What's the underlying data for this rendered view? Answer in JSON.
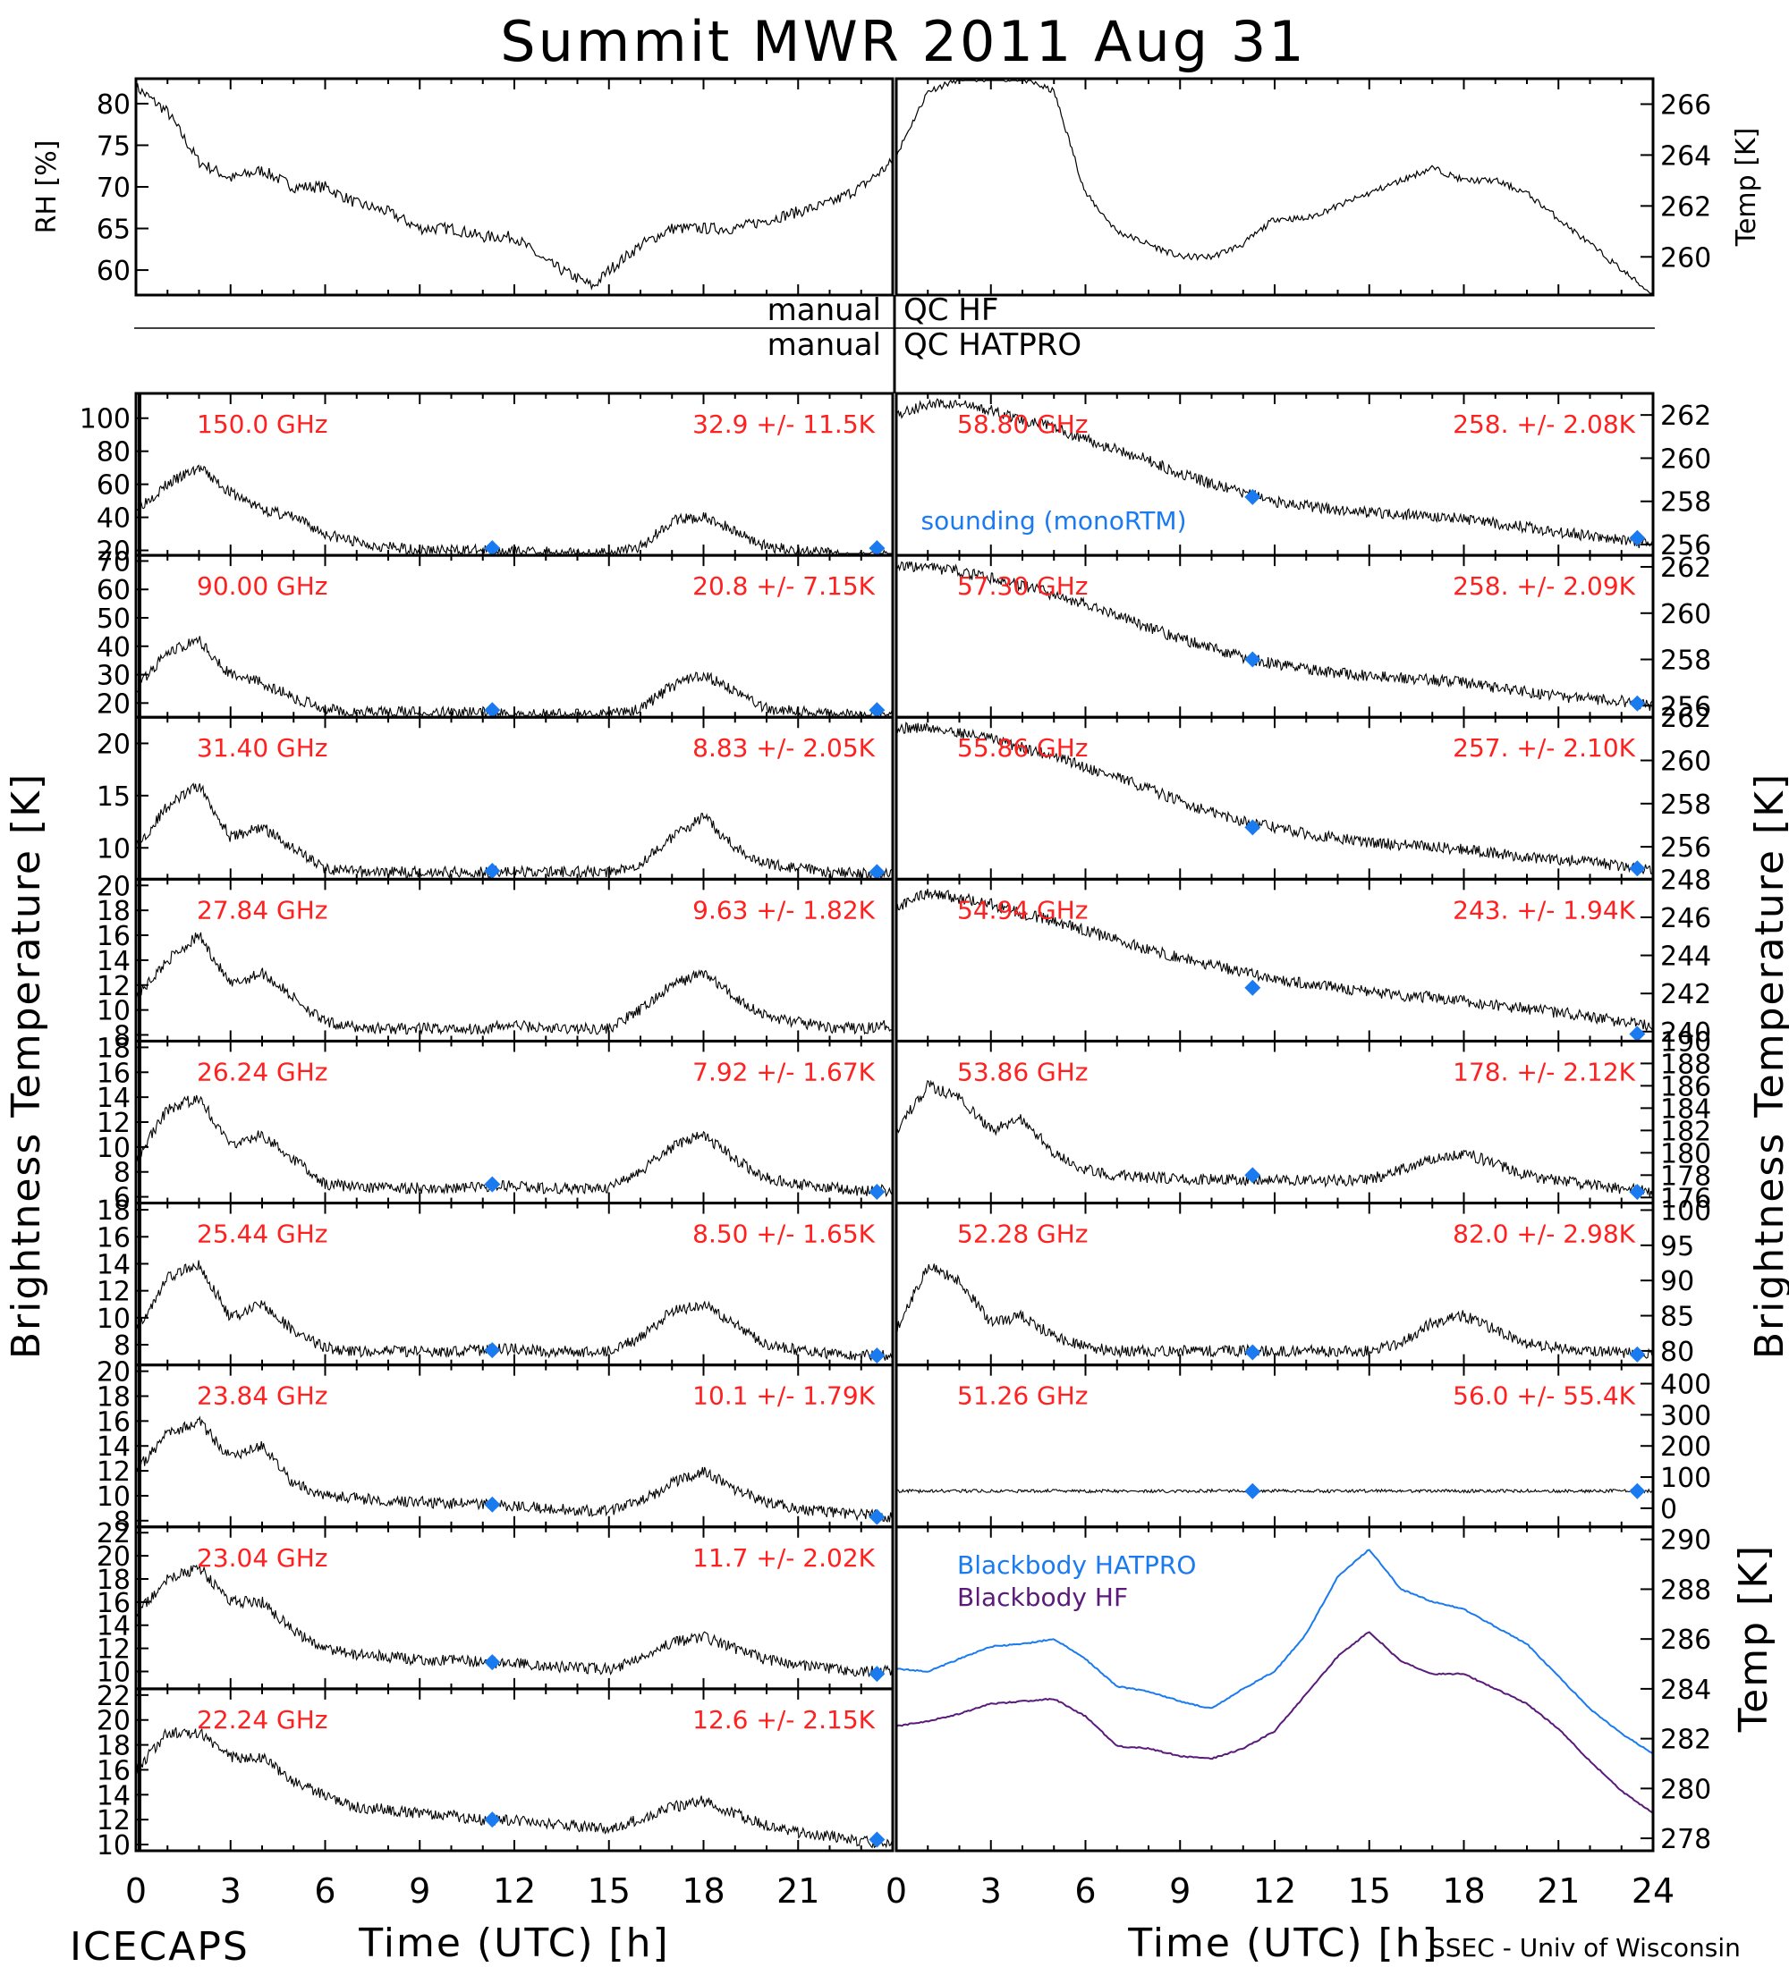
{
  "figure": {
    "title": "Summit MWR 2011 Aug 31",
    "footer_left": "ICECAPS",
    "footer_right": "SSEC - Univ of Wisconsin",
    "xlabel": "Time (UTC) [h]",
    "left_ylabel": "Brightness Temperature [K]",
    "right_ylabel": "Brightness Temperature [K]",
    "x_ticks": [
      "0",
      "3",
      "6",
      "9",
      "12",
      "15",
      "18",
      "21",
      "24"
    ],
    "x_ticks_left": [
      "0",
      "3",
      "6",
      "9",
      "12",
      "15",
      "18",
      "21"
    ],
    "qc": {
      "row1_left": "manual",
      "row1_right": "QC HF",
      "row2_left": "manual",
      "row2_right": "QC HATPRO"
    },
    "sounding_label": "sounding (monoRTM)",
    "colors": {
      "trace": "#000000",
      "label": "#ff2020",
      "sounding": "#1a7af0",
      "bb_hatpro": "#1a7af0",
      "bb_hf": "#5a1a7a"
    }
  },
  "chart_data": [
    {
      "id": "rh",
      "type": "line",
      "ylabel": "RH [%]",
      "xlim": [
        0,
        24
      ],
      "ylim": [
        57,
        83
      ],
      "yticks": [
        "60",
        "65",
        "70",
        "75",
        "80"
      ],
      "x": [
        0,
        1,
        2,
        3,
        4,
        5,
        6,
        7,
        8,
        9,
        10,
        11,
        12,
        13,
        14,
        14.5,
        15,
        16,
        17,
        18,
        19,
        20,
        21,
        22,
        23,
        24
      ],
      "y": [
        82,
        79,
        73,
        71,
        72,
        70,
        70,
        68,
        67,
        65,
        65,
        64,
        64,
        61,
        59,
        58,
        60,
        63,
        65,
        65,
        65,
        66,
        67,
        68,
        70,
        73
      ]
    },
    {
      "id": "temp",
      "type": "line",
      "ylabel": "Temp [K]",
      "xlim": [
        0,
        24
      ],
      "ylim": [
        258.5,
        267
      ],
      "yticks": [
        "260",
        "262",
        "264",
        "266"
      ],
      "x": [
        0,
        1,
        2,
        3,
        4,
        5,
        6,
        7,
        8,
        9,
        10,
        11,
        12,
        13,
        14,
        15,
        16,
        17,
        18,
        19,
        20,
        21,
        22,
        23,
        24
      ],
      "y": [
        264,
        266.5,
        267,
        267,
        267,
        266.5,
        262.5,
        261,
        260.5,
        260,
        260,
        260.5,
        261.5,
        261.5,
        262,
        262.5,
        263,
        263.5,
        263,
        263,
        262.5,
        261.5,
        260.5,
        259.5,
        258.5
      ]
    },
    {
      "id": "150",
      "type": "line",
      "label": "150.0 GHz",
      "stats": "32.9 +/- 11.5K",
      "ylim": [
        17,
        115
      ],
      "yticks": [
        "20",
        "40",
        "60",
        "80",
        "100"
      ],
      "hatch": 2,
      "y": [
        45,
        60,
        70,
        55,
        45,
        40,
        30,
        25,
        22,
        20,
        20,
        20,
        19,
        19,
        18,
        18,
        22,
        38,
        40,
        32,
        22,
        20,
        18,
        17,
        17
      ],
      "sounding": {
        "x": [
          11.3,
          23.5
        ],
        "y": [
          19,
          18
        ]
      }
    },
    {
      "id": "90",
      "type": "line",
      "label": "90.00 GHz",
      "stats": "20.8 +/- 7.15K",
      "ylim": [
        15,
        72
      ],
      "yticks": [
        "20",
        "30",
        "40",
        "50",
        "60",
        "70"
      ],
      "hatch": 2,
      "y": [
        25,
        38,
        42,
        30,
        27,
        22,
        18,
        17,
        17,
        17,
        17,
        17,
        16,
        16,
        16,
        16,
        18,
        26,
        30,
        24,
        18,
        17,
        16,
        16,
        16
      ],
      "sounding": {
        "x": [
          11.3,
          23.5
        ],
        "y": [
          17,
          16
        ]
      }
    },
    {
      "id": "31",
      "type": "line",
      "label": "31.40 GHz",
      "stats": "8.83 +/- 2.05K",
      "ylim": [
        7,
        22.5
      ],
      "yticks": [
        "10",
        "15",
        "20"
      ],
      "hatch": 2,
      "y": [
        10,
        14,
        16,
        11,
        12,
        10,
        8,
        7.7,
        7.7,
        7.7,
        7.7,
        7.7,
        7.7,
        7.7,
        7.7,
        7.7,
        8.5,
        11,
        13,
        10,
        8.5,
        8,
        7.7,
        7.5,
        7.5
      ],
      "sounding": {
        "x": [
          11.3,
          23.5
        ],
        "y": [
          7.8,
          7.6
        ]
      }
    },
    {
      "id": "27",
      "type": "line",
      "label": "27.84 GHz",
      "stats": "9.63 +/- 1.82K",
      "ylim": [
        7.5,
        20.5
      ],
      "yticks": [
        "8",
        "10",
        "12",
        "14",
        "16",
        "18",
        "20"
      ],
      "hatch": 2,
      "y": [
        11,
        14,
        16,
        12,
        13,
        11,
        9,
        8.6,
        8.5,
        8.5,
        8.5,
        8.5,
        8.8,
        8.5,
        8.5,
        8.5,
        10,
        12,
        13,
        11,
        9.5,
        9,
        8.6,
        8.5,
        8.8
      ],
      "sounding": null
    },
    {
      "id": "26",
      "type": "line",
      "label": "26.24 GHz",
      "stats": "7.92 +/- 1.67K",
      "ylim": [
        5.5,
        18.5
      ],
      "yticks": [
        "6",
        "8",
        "10",
        "12",
        "14",
        "16",
        "18"
      ],
      "hatch": 2,
      "y": [
        9,
        13,
        14,
        10,
        11,
        9,
        7,
        6.8,
        6.7,
        6.7,
        6.7,
        6.8,
        6.9,
        6.7,
        6.7,
        6.7,
        8,
        10,
        11,
        9,
        7.5,
        7,
        6.7,
        6.5,
        6.5
      ],
      "sounding": {
        "x": [
          11.3,
          23.5
        ],
        "y": [
          7,
          6.4
        ]
      }
    },
    {
      "id": "25",
      "type": "line",
      "label": "25.44 GHz",
      "stats": "8.50 +/- 1.65K",
      "ylim": [
        6.5,
        18.5
      ],
      "yticks": [
        "8",
        "10",
        "12",
        "14",
        "16",
        "18"
      ],
      "hatch": 2,
      "y": [
        9,
        13,
        14,
        10,
        11,
        9,
        7.8,
        7.5,
        7.5,
        7.5,
        7.5,
        7.6,
        7.7,
        7.5,
        7.5,
        7.5,
        8.5,
        10.5,
        11,
        9.5,
        8,
        7.6,
        7.3,
        7.2,
        7.2
      ],
      "sounding": {
        "x": [
          11.3,
          23.5
        ],
        "y": [
          7.6,
          7.2
        ]
      }
    },
    {
      "id": "23.84",
      "type": "line",
      "label": "23.84 GHz",
      "stats": "10.1 +/- 1.79K",
      "ylim": [
        7.5,
        20.5
      ],
      "yticks": [
        "8",
        "10",
        "12",
        "14",
        "16",
        "18",
        "20"
      ],
      "hatch": 2,
      "y": [
        12,
        15,
        16,
        13,
        14,
        11,
        10,
        9.8,
        9.6,
        9.5,
        9.4,
        9.3,
        9.2,
        9,
        8.8,
        8.8,
        9.5,
        11,
        12,
        10.5,
        9.5,
        9,
        8.7,
        8.5,
        8.3
      ],
      "sounding": {
        "x": [
          11.3,
          23.5
        ],
        "y": [
          9.3,
          8.3
        ]
      }
    },
    {
      "id": "23.04",
      "type": "line",
      "label": "23.04 GHz",
      "stats": "11.7 +/- 2.02K",
      "ylim": [
        8.5,
        22.5
      ],
      "yticks": [
        "10",
        "12",
        "14",
        "16",
        "18",
        "20",
        "22"
      ],
      "hatch": 2,
      "y": [
        15,
        18,
        19,
        16,
        16,
        13.5,
        12,
        11.5,
        11.3,
        11,
        11,
        10.8,
        10.7,
        10.5,
        10.3,
        10.2,
        11,
        12.5,
        13,
        12,
        11,
        10.5,
        10.2,
        10,
        10
      ],
      "sounding": {
        "x": [
          11.3,
          23.5
        ],
        "y": [
          10.8,
          9.8
        ]
      }
    },
    {
      "id": "22.24",
      "type": "line",
      "label": "22.24 GHz",
      "stats": "12.6 +/- 2.15K",
      "ylim": [
        9.5,
        22.5
      ],
      "yticks": [
        "10",
        "12",
        "14",
        "16",
        "18",
        "20",
        "22"
      ],
      "hatch": 2,
      "y": [
        16,
        19,
        19,
        17,
        17,
        15,
        14,
        13,
        12.8,
        12.5,
        12.3,
        12,
        11.9,
        11.7,
        11.5,
        11.3,
        12,
        13,
        13.5,
        12.5,
        11.5,
        11,
        10.7,
        10.3,
        10
      ],
      "sounding": {
        "x": [
          11.3,
          23.5
        ],
        "y": [
          12,
          10.4
        ]
      }
    },
    {
      "id": "58.80",
      "type": "line",
      "label": "58.80 GHz",
      "stats": "258. +/- 2.08K",
      "ylim": [
        255.5,
        263
      ],
      "yticks": [
        "256",
        "258",
        "260",
        "262"
      ],
      "y": [
        262,
        262.5,
        262.5,
        262.2,
        261.8,
        261.4,
        260.9,
        260.4,
        259.9,
        259.3,
        258.8,
        258.4,
        258,
        257.8,
        257.6,
        257.5,
        257.4,
        257.3,
        257.2,
        257,
        256.8,
        256.6,
        256.4,
        256.2,
        256
      ],
      "sounding": {
        "x": [
          11.3,
          23.5
        ],
        "y": [
          258.2,
          256.3
        ]
      }
    },
    {
      "id": "57.30",
      "type": "line",
      "label": "57.30 GHz",
      "stats": "258. +/- 2.09K",
      "ylim": [
        255.5,
        262.5
      ],
      "yticks": [
        "256",
        "258",
        "260",
        "262"
      ],
      "y": [
        262,
        262,
        261.8,
        261.5,
        261.2,
        260.8,
        260.4,
        259.9,
        259.4,
        258.9,
        258.5,
        258.1,
        257.8,
        257.6,
        257.4,
        257.3,
        257.2,
        257.1,
        257,
        256.8,
        256.6,
        256.4,
        256.3,
        256.2,
        256
      ],
      "sounding": {
        "x": [
          11.3,
          23.5
        ],
        "y": [
          258,
          256.1
        ]
      }
    },
    {
      "id": "55.86",
      "type": "line",
      "label": "55.86 GHz",
      "stats": "257. +/- 2.10K",
      "ylim": [
        254.5,
        262
      ],
      "yticks": [
        "256",
        "258",
        "260",
        "262"
      ],
      "y": [
        261.5,
        261.5,
        261.3,
        261,
        260.6,
        260.2,
        259.7,
        259.2,
        258.7,
        258.1,
        257.6,
        257.2,
        256.9,
        256.6,
        256.4,
        256.2,
        256.1,
        256,
        255.9,
        255.7,
        255.5,
        255.4,
        255.3,
        255.1,
        255
      ],
      "sounding": {
        "x": [
          11.3,
          23.5
        ],
        "y": [
          256.9,
          255
        ]
      }
    },
    {
      "id": "54.94",
      "type": "line",
      "label": "54.94 GHz",
      "stats": "243. +/- 1.94K",
      "ylim": [
        239.5,
        248
      ],
      "yticks": [
        "240",
        "242",
        "244",
        "246",
        "248"
      ],
      "y": [
        246.5,
        247.3,
        247,
        246.7,
        246.2,
        245.8,
        245.3,
        244.8,
        244.3,
        243.9,
        243.5,
        243.1,
        242.8,
        242.5,
        242.3,
        242.1,
        241.9,
        241.8,
        241.6,
        241.4,
        241.2,
        241,
        240.8,
        240.5,
        240.3
      ],
      "sounding": {
        "x": [
          11.3,
          23.5
        ],
        "y": [
          242.3,
          239.8
        ]
      }
    },
    {
      "id": "53.86",
      "type": "line",
      "label": "53.86 GHz",
      "stats": "178. +/- 2.12K",
      "ylim": [
        175.5,
        190
      ],
      "yticks": [
        "176",
        "178",
        "180",
        "182",
        "184",
        "186",
        "188",
        "190"
      ],
      "y": [
        182,
        186,
        185,
        182,
        183,
        180,
        178.5,
        178,
        177.8,
        177.7,
        177.6,
        177.6,
        177.6,
        177.5,
        177.5,
        177.6,
        178.5,
        179.5,
        180,
        179,
        178,
        177.5,
        177.2,
        176.8,
        176.5
      ],
      "sounding": {
        "x": [
          11.3,
          23.5
        ],
        "y": [
          178,
          176.5
        ]
      }
    },
    {
      "id": "52.28",
      "type": "line",
      "label": "52.28 GHz",
      "stats": "82.0 +/- 2.98K",
      "ylim": [
        78,
        101
      ],
      "yticks": [
        "80",
        "85",
        "90",
        "95",
        "100"
      ],
      "y": [
        83,
        92,
        90,
        84,
        85,
        82,
        80.5,
        80,
        80,
        80,
        80,
        80,
        80,
        80,
        80,
        80,
        81,
        84,
        85,
        83,
        81,
        80.5,
        80,
        79.8,
        79.5
      ],
      "sounding": {
        "x": [
          11.3,
          23.5
        ],
        "y": [
          79.8,
          79.5
        ]
      }
    },
    {
      "id": "51.26",
      "type": "line",
      "label": "51.26 GHz",
      "stats": "56.0 +/- 55.4K",
      "ylim": [
        -60,
        460
      ],
      "yticks": [
        "0",
        "100",
        "200",
        "300",
        "400"
      ],
      "y": [
        55,
        55,
        56,
        55,
        55,
        56,
        55,
        55,
        55,
        55,
        56,
        55,
        56,
        55,
        55,
        56,
        55,
        56,
        55,
        55,
        56,
        55,
        55,
        56,
        55
      ],
      "sounding": {
        "x": [
          11.3,
          23.5
        ],
        "y": [
          55,
          55
        ]
      }
    },
    {
      "id": "blackbody",
      "type": "line",
      "ylabel": "Temp [K]",
      "xlim": [
        0,
        24
      ],
      "ylim": [
        277.5,
        290.5
      ],
      "yticks": [
        "278",
        "280",
        "282",
        "284",
        "286",
        "288",
        "290"
      ],
      "x": [
        0,
        1,
        2,
        3,
        4,
        5,
        6,
        7,
        8,
        9,
        10,
        11,
        12,
        13,
        14,
        15,
        16,
        17,
        18,
        19,
        20,
        21,
        22,
        23,
        24
      ],
      "series": [
        {
          "name": "Blackbody HATPRO",
          "values": [
            284.8,
            284.7,
            285.2,
            285.7,
            285.8,
            286,
            285.2,
            284.1,
            283.9,
            283.5,
            283.2,
            284,
            284.7,
            286.2,
            288.5,
            289.6,
            288,
            287.5,
            287.2,
            286.5,
            285.8,
            284.5,
            283.2,
            282.2,
            281.4
          ]
        },
        {
          "name": "Blackbody HF",
          "values": [
            282.5,
            282.7,
            283,
            283.4,
            283.5,
            283.6,
            282.9,
            281.7,
            281.6,
            281.3,
            281.2,
            281.6,
            282.3,
            283.8,
            285.3,
            286.3,
            285.1,
            284.6,
            284.6,
            284,
            283.4,
            282.4,
            281.1,
            279.9,
            279
          ]
        }
      ]
    }
  ]
}
